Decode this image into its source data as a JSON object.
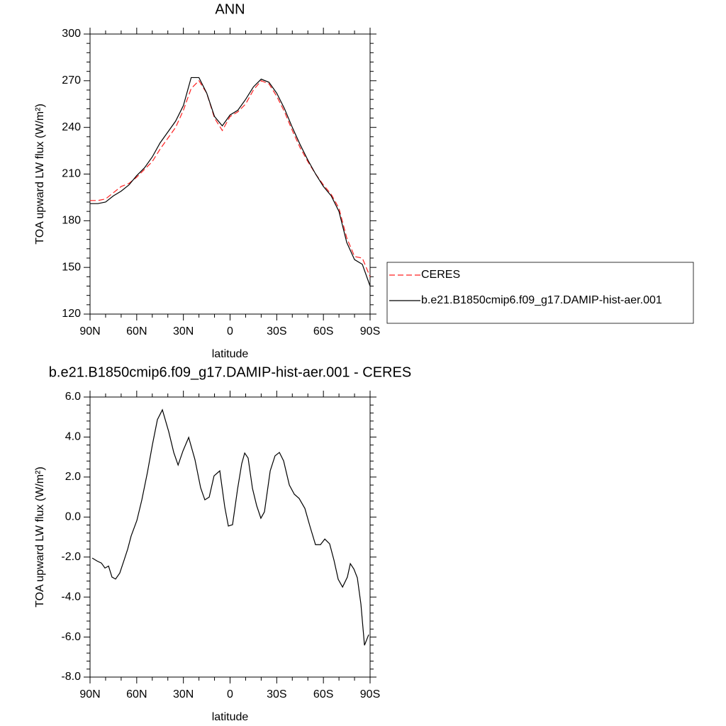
{
  "chart_data": [
    {
      "type": "line",
      "title": "ANN",
      "xlabel": "latitude",
      "ylabel": "TOA upward LW flux (W/m²)",
      "x": [
        90,
        85,
        80,
        75,
        70,
        65,
        60,
        55,
        50,
        45,
        40,
        35,
        30,
        25,
        20,
        15,
        10,
        5,
        0,
        -5,
        -10,
        -15,
        -20,
        -25,
        -30,
        -35,
        -40,
        -45,
        -50,
        -55,
        -60,
        -65,
        -70,
        -75,
        -80,
        -85,
        -90
      ],
      "series": [
        {
          "name": "CERES",
          "color": "#ff2020",
          "dashed": true,
          "values": [
            193,
            193,
            194,
            198,
            202,
            204,
            208,
            213,
            218,
            226,
            233,
            240,
            251,
            265,
            270,
            262,
            246,
            238,
            247,
            250,
            255,
            264,
            270,
            268,
            260,
            250,
            238,
            227,
            218,
            210,
            203,
            197,
            188,
            169,
            157,
            156,
            144
          ]
        },
        {
          "name": "b.e21.B1850cmip6.f09_g17.DAMIP-hist-aer.001",
          "color": "#000000",
          "dashed": false,
          "values": [
            191,
            191,
            192,
            196,
            199,
            203,
            209,
            214,
            221,
            230,
            237,
            244,
            254,
            272,
            272,
            262,
            247,
            241,
            248,
            251,
            258,
            266,
            271,
            269,
            262,
            252,
            240,
            229,
            219,
            210,
            202,
            196,
            186,
            166,
            155,
            152,
            138
          ]
        }
      ],
      "xlim": [
        90,
        -90
      ],
      "xticks": [
        {
          "value": 90,
          "label": "90N"
        },
        {
          "value": 60,
          "label": "60N"
        },
        {
          "value": 30,
          "label": "30N"
        },
        0,
        {
          "value": -30,
          "label": "30S"
        },
        {
          "value": -60,
          "label": "60S"
        },
        {
          "value": -90,
          "label": "90S"
        }
      ],
      "ylim": [
        120,
        300
      ],
      "yticks": [
        120,
        150,
        180,
        210,
        240,
        270,
        300
      ],
      "legend": "right"
    },
    {
      "type": "line",
      "title": "b.e21.B1850cmip6.f09_g17.DAMIP-hist-aer.001 - CERES",
      "xlabel": "latitude",
      "ylabel": "TOA upward LW flux (W/m²)",
      "x": [
        88.6,
        85.4,
        82.7,
        80.4,
        78.1,
        75.9,
        73.6,
        70.9,
        68.1,
        65.8,
        63.6,
        59.9,
        56.7,
        53.1,
        49.9,
        46.7,
        43.5,
        39.4,
        36.2,
        33.4,
        30.3,
        26.6,
        22.6,
        18.9,
        16.2,
        13.4,
        10.3,
        6.6,
        3.4,
        1.1,
        -1.6,
        -4.8,
        -7.5,
        -9.4,
        -11.6,
        -14.4,
        -17.1,
        -19.8,
        -22.1,
        -25.8,
        -28.9,
        -31.7,
        -34.4,
        -38.1,
        -41.3,
        -44.4,
        -48.1,
        -51.3,
        -54.9,
        -58.1,
        -60.9,
        -64.0,
        -66.8,
        -69.5,
        -72.3,
        -75.4,
        -77.3,
        -79.6,
        -81.8,
        -84.1,
        -86.4,
        -89.1
      ],
      "series": [
        {
          "color": "#000000",
          "dashed": false,
          "values": [
            -2.05,
            -2.2,
            -2.3,
            -2.55,
            -2.45,
            -3.0,
            -3.1,
            -2.8,
            -2.15,
            -1.6,
            -0.95,
            -0.17,
            0.86,
            2.24,
            3.62,
            4.87,
            5.36,
            4.26,
            3.23,
            2.6,
            3.3,
            3.98,
            2.88,
            1.46,
            0.86,
            1.0,
            2.06,
            2.31,
            0.5,
            -0.45,
            -0.38,
            1.39,
            2.67,
            3.2,
            2.95,
            1.43,
            0.57,
            -0.06,
            0.26,
            2.31,
            3.06,
            3.23,
            2.81,
            1.6,
            1.14,
            0.93,
            0.43,
            -0.45,
            -1.38,
            -1.38,
            -1.1,
            -1.34,
            -2.16,
            -3.11,
            -3.5,
            -3.0,
            -2.33,
            -2.6,
            -3.04,
            -4.35,
            -6.41,
            -5.88
          ]
        }
      ],
      "xlim": [
        90,
        -90
      ],
      "xticks": [
        {
          "value": 90,
          "label": "90N"
        },
        {
          "value": 60,
          "label": "60N"
        },
        {
          "value": 30,
          "label": "30N"
        },
        0,
        {
          "value": -30,
          "label": "30S"
        },
        {
          "value": -60,
          "label": "60S"
        },
        {
          "value": -90,
          "label": "90S"
        }
      ],
      "ylim": [
        -8,
        6
      ],
      "yticks": [
        {
          "value": -8,
          "label": "-8.0"
        },
        {
          "value": -6,
          "label": "-6.0"
        },
        {
          "value": -4,
          "label": "-4.0"
        },
        {
          "value": -2,
          "label": "-2.0"
        },
        {
          "value": 0,
          "label": "0.0"
        },
        {
          "value": 2,
          "label": "2.0"
        },
        {
          "value": 4,
          "label": "4.0"
        },
        {
          "value": 6,
          "label": "6.0"
        }
      ]
    }
  ]
}
